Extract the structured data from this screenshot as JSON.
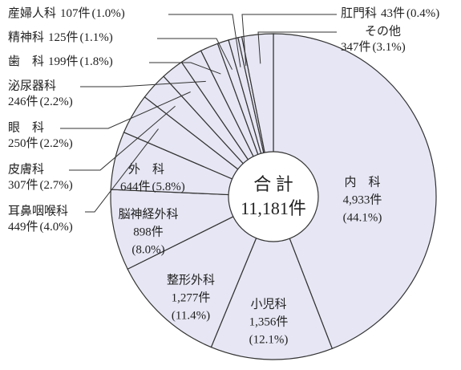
{
  "chart_data": {
    "type": "pie",
    "categories": [
      "内　科",
      "小児科",
      "整形外科",
      "脳神経外科",
      "外　科",
      "耳鼻咽喉科",
      "皮膚科",
      "眼　科",
      "泌尿器科",
      "歯　科",
      "精神科",
      "産婦人科",
      "肛門科",
      "その他"
    ],
    "values": [
      4933,
      1356,
      1277,
      898,
      644,
      449,
      307,
      250,
      246,
      199,
      125,
      107,
      43,
      347
    ],
    "value_labels": [
      "4,933件",
      "1,356件",
      "1,277件",
      "898件",
      "644件",
      "449件",
      "307件",
      "250件",
      "246件",
      "199件",
      "125件",
      "107件",
      "43件",
      "347件"
    ],
    "percents": [
      44.1,
      12.1,
      11.4,
      8.0,
      5.8,
      4.0,
      2.7,
      2.2,
      2.2,
      1.8,
      1.1,
      1.0,
      0.4,
      3.1
    ],
    "percent_labels": [
      "(44.1%)",
      "(12.1%)",
      "(11.4%)",
      "(8.0%)",
      "(5.8%)",
      "(4.0%)",
      "(2.7%)",
      "(2.2%)",
      "(2.2%)",
      "(1.8%)",
      "(1.1%)",
      "(1.0%)",
      "(0.4%)",
      "(3.1%)"
    ],
    "color": "#e6e6f4",
    "total_label": "合 計",
    "total": {
      "value": 11181,
      "label": "11,181件"
    }
  }
}
